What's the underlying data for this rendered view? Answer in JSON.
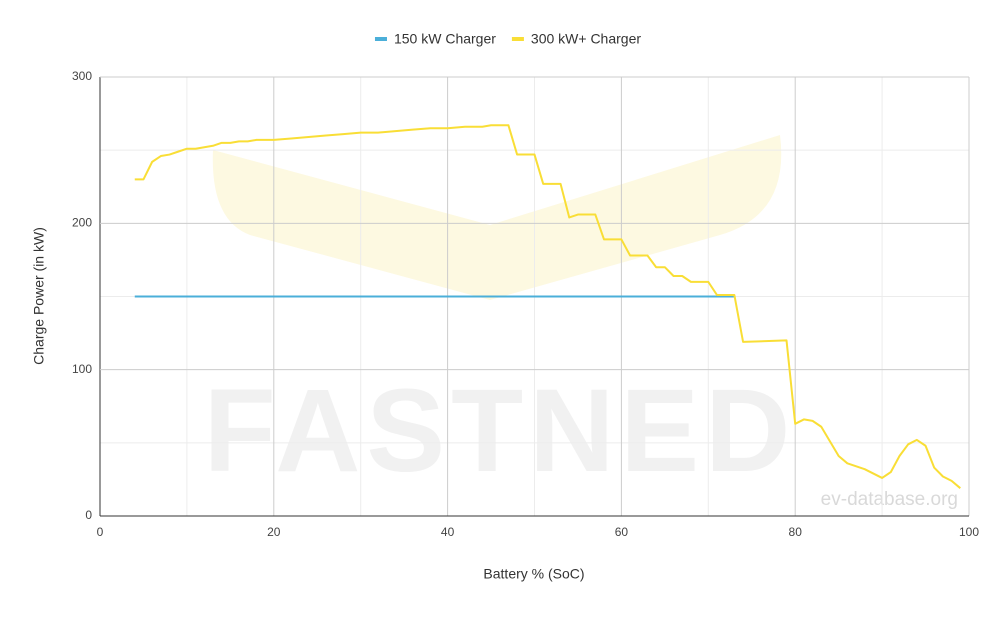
{
  "chart_data": {
    "type": "line",
    "xlabel": "Battery % (SoC)",
    "ylabel": "Charge Power (in kW)",
    "watermark": "FASTNED",
    "credit": "ev-database.org",
    "xlim": [
      0,
      100
    ],
    "xticks": [
      0,
      20,
      40,
      60,
      80,
      100
    ],
    "x_minor_ticks": [
      10,
      30,
      50,
      70,
      90
    ],
    "ylim": [
      0,
      300
    ],
    "yticks": [
      0,
      100,
      200,
      300
    ],
    "y_minor_ticks": [
      50,
      150,
      250
    ],
    "grid": true,
    "legend": "top",
    "series": [
      {
        "name": "150 kW Charger",
        "color": "#4bafd9",
        "x": [
          4,
          73
        ],
        "values": [
          150,
          150
        ]
      },
      {
        "name": "300 kW+ Charger",
        "color": "#f9de36",
        "x": [
          4,
          5,
          6,
          7,
          8,
          9,
          10,
          11,
          12,
          13,
          14,
          15,
          16,
          17,
          18,
          20,
          22,
          24,
          26,
          28,
          30,
          32,
          34,
          36,
          38,
          40,
          42,
          44,
          45,
          47,
          48,
          50,
          51,
          53,
          54,
          55,
          57,
          58,
          60,
          61,
          63,
          64,
          65,
          66,
          67,
          68,
          70,
          71,
          73,
          74,
          79,
          80,
          81,
          82,
          83,
          84,
          85,
          86,
          88,
          89,
          90,
          91,
          92,
          93,
          94,
          95,
          96,
          97,
          98,
          99
        ],
        "values": [
          230,
          230,
          242,
          246,
          247,
          249,
          251,
          251,
          252,
          253,
          255,
          255,
          256,
          256,
          257,
          257,
          258,
          259,
          260,
          261,
          262,
          262,
          263,
          264,
          265,
          265,
          266,
          266,
          267,
          267,
          247,
          247,
          227,
          227,
          204,
          206,
          206,
          189,
          189,
          178,
          178,
          170,
          170,
          164,
          164,
          160,
          160,
          151,
          151,
          119,
          120,
          63,
          66,
          65,
          61,
          51,
          41,
          36,
          32,
          29,
          26,
          30,
          41,
          49,
          52,
          48,
          33,
          27,
          24,
          19
        ]
      }
    ]
  }
}
